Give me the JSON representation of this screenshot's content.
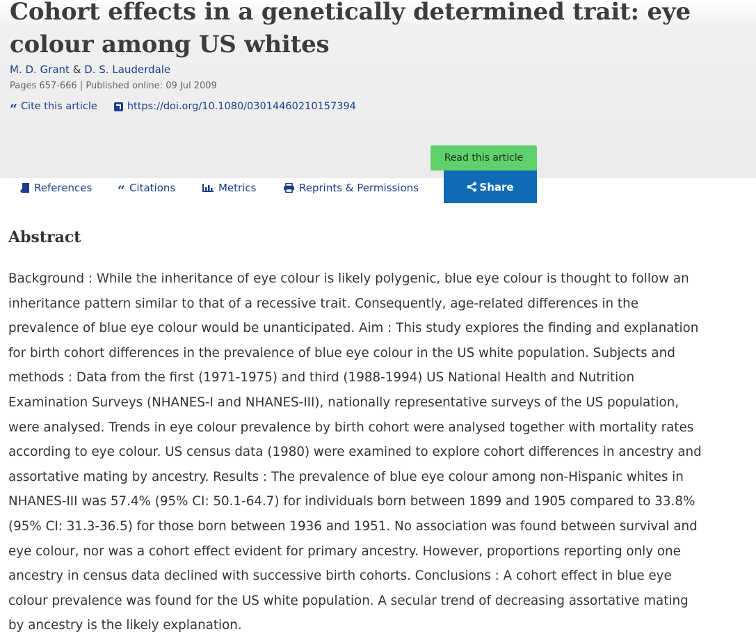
{
  "article": {
    "title": "Cohort effects in a genetically determined trait: eye colour among US whites",
    "authors": [
      "M. D. Grant",
      "D. S. Lauderdale"
    ],
    "author_separator": "&",
    "meta": "Pages 657-666 | Published online: 09 Jul 2009",
    "cite_label": "Cite this article",
    "doi_link": "https://doi.org/10.1080/03014460210157394"
  },
  "actions": {
    "read_label": "Read this article",
    "tabs": [
      "References",
      "Citations",
      "Metrics",
      "Reprints & Permissions"
    ],
    "share_label": "Share"
  },
  "abstract": {
    "heading": "Abstract",
    "text": "Background : While the inheritance of eye colour is likely polygenic, blue eye colour is thought to follow an inheritance pattern similar to that of a recessive trait. Consequently, age-related differences in the prevalence of blue eye colour would be unanticipated. Aim : This study explores the finding and explanation for birth cohort differences in the prevalence of blue eye colour in the US white population. Subjects and methods : Data from the first (1971-1975) and third (1988-1994) US National Health and Nutrition Examination Surveys (NHANES-I and NHANES-III), nationally representative surveys of the US population, were analysed. Trends in eye colour prevalence by birth cohort were analysed together with mortality rates according to eye colour. US census data (1980) were examined to explore cohort differences in ancestry and assortative mating by ancestry. Results : The prevalence of blue eye colour among non-Hispanic whites in NHANES-III was 57.4% (95% CI: 50.1-64.7) for individuals born between 1899 and 1905 compared to 33.8% (95% CI: 31.3-36.5) for those born between 1936 and 1951. No association was found between survival and eye colour, nor was a cohort effect evident for primary ancestry. However, proportions reporting only one ancestry in census data declined with successive birth cohorts. Conclusions : A cohort effect in blue eye colour prevalence was found for the US white population. A secular trend of decreasing assortative mating by ancestry is the likely explanation."
  },
  "colors": {
    "link": "#1a3d8c",
    "read_button": "#5fd06b",
    "share_button": "#0f6bb5",
    "header_background": "#ebebeb"
  },
  "icons": [
    "quote-icon",
    "external-link-icon",
    "book-icon",
    "bar-chart-icon",
    "printer-icon",
    "share-icon"
  ]
}
